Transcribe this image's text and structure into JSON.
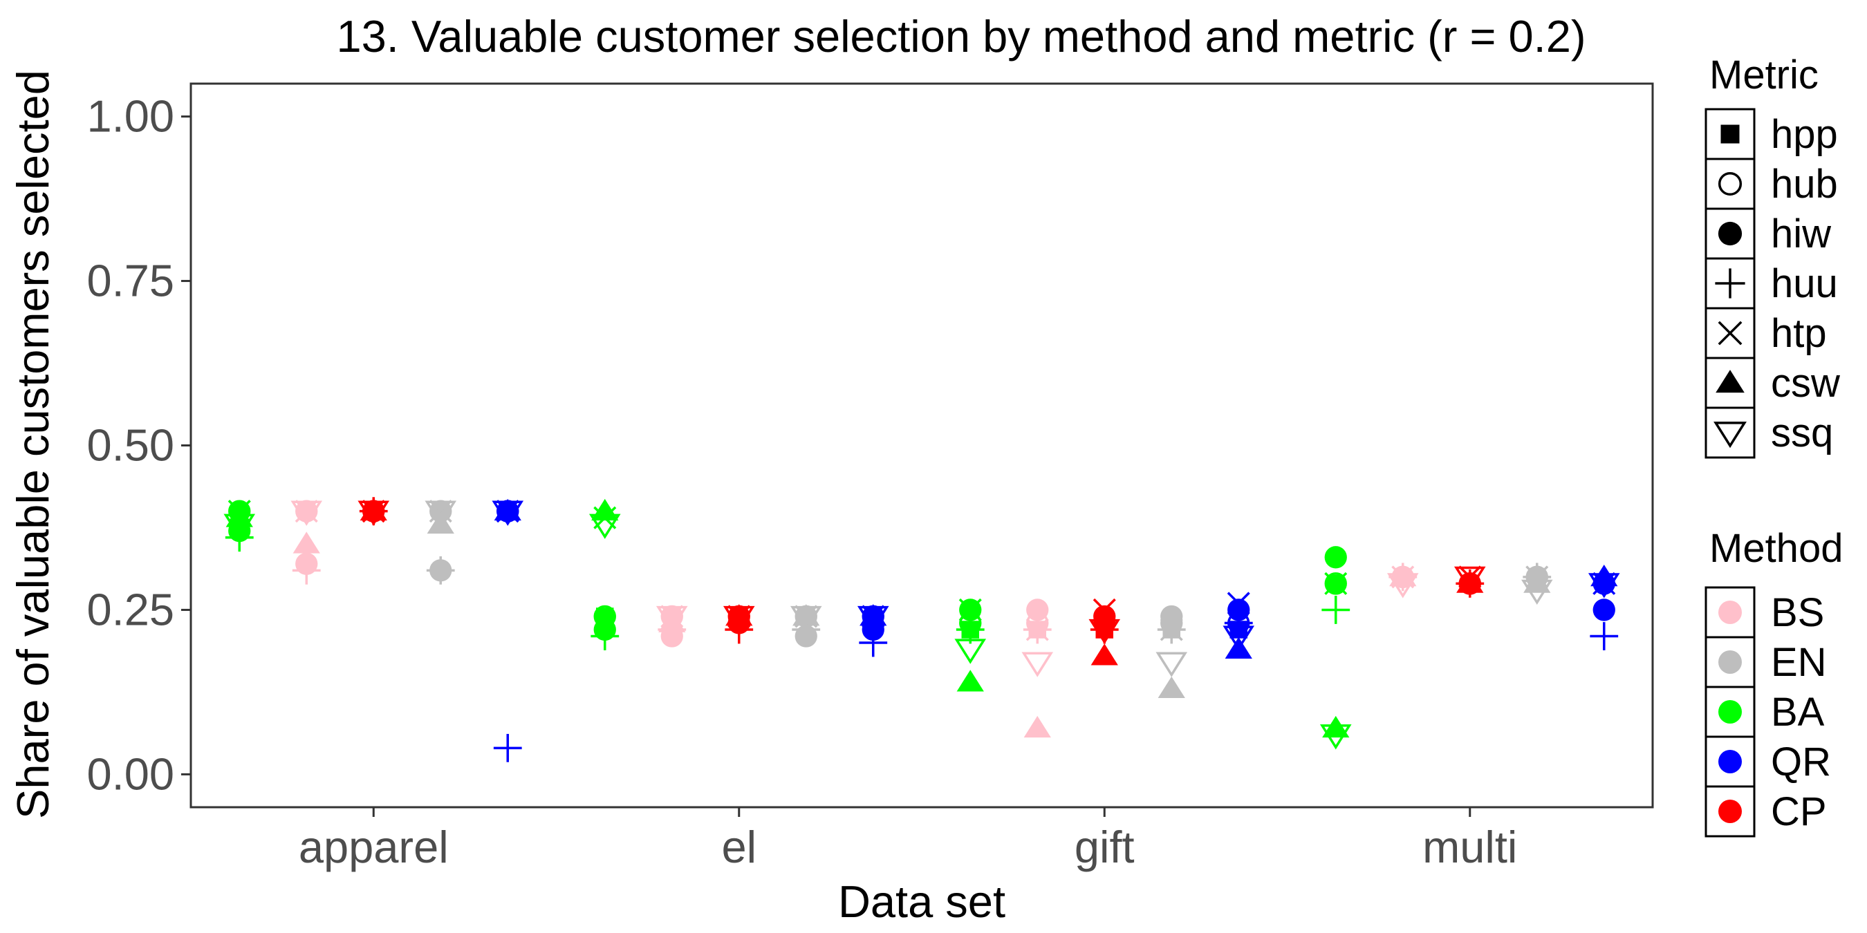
{
  "chart_data": {
    "type": "scatter",
    "title": "13. Valuable customer selection by method and metric (r = 0.2)",
    "xlabel": "Data set",
    "ylabel": "Share of valuable customers selected",
    "categories": [
      "apparel",
      "el",
      "gift",
      "multi"
    ],
    "ylim": [
      -0.05,
      1.05
    ],
    "yticks": [
      0.0,
      0.25,
      0.5,
      0.75,
      1.0
    ],
    "ytick_labels": [
      "0.00",
      "0.25",
      "0.50",
      "0.75",
      "1.00"
    ],
    "grid": false,
    "legend_position": "right",
    "metric_legend": {
      "title": "Metric",
      "items": [
        {
          "label": "hpp",
          "shape": "square-filled"
        },
        {
          "label": "hub",
          "shape": "circle-open"
        },
        {
          "label": "hiw",
          "shape": "circle-filled"
        },
        {
          "label": "huu",
          "shape": "plus"
        },
        {
          "label": "htp",
          "shape": "cross"
        },
        {
          "label": "csw",
          "shape": "triangle-up-filled"
        },
        {
          "label": "ssq",
          "shape": "triangle-down-open"
        }
      ]
    },
    "method_legend": {
      "title": "Method",
      "items": [
        {
          "label": "BS",
          "color": "#FFC0CB"
        },
        {
          "label": "EN",
          "color": "#BEBEBE"
        },
        {
          "label": "BA",
          "color": "#00FF00"
        },
        {
          "label": "QR",
          "color": "#0000FF"
        },
        {
          "label": "CP",
          "color": "#FF0000"
        }
      ]
    },
    "methods_order_in_group": [
      "BA",
      "BS",
      "CP",
      "EN",
      "QR"
    ],
    "series": [
      {
        "method": "BA",
        "metric": "hpp",
        "values": [
          0.4,
          0.24,
          0.22,
          0.29
        ]
      },
      {
        "method": "BA",
        "metric": "hub",
        "values": [
          0.4,
          0.24,
          0.23,
          0.29
        ]
      },
      {
        "method": "BA",
        "metric": "hiw",
        "values": [
          0.37,
          0.22,
          0.25,
          0.33
        ]
      },
      {
        "method": "BA",
        "metric": "huu",
        "values": [
          0.36,
          0.21,
          0.22,
          0.25
        ]
      },
      {
        "method": "BA",
        "metric": "htp",
        "values": [
          0.4,
          0.39,
          0.25,
          0.29
        ]
      },
      {
        "method": "BA",
        "metric": "csw",
        "values": [
          0.39,
          0.4,
          0.14,
          0.07
        ]
      },
      {
        "method": "BA",
        "metric": "ssq",
        "values": [
          0.38,
          0.38,
          0.19,
          0.06
        ]
      },
      {
        "method": "BS",
        "metric": "hpp",
        "values": [
          0.4,
          0.24,
          0.22,
          0.3
        ]
      },
      {
        "method": "BS",
        "metric": "hub",
        "values": [
          0.4,
          0.24,
          0.23,
          0.3
        ]
      },
      {
        "method": "BS",
        "metric": "hiw",
        "values": [
          0.32,
          0.21,
          0.25,
          0.3
        ]
      },
      {
        "method": "BS",
        "metric": "huu",
        "values": [
          0.31,
          0.22,
          0.22,
          0.3
        ]
      },
      {
        "method": "BS",
        "metric": "htp",
        "values": [
          0.4,
          0.24,
          0.22,
          0.3
        ]
      },
      {
        "method": "BS",
        "metric": "csw",
        "values": [
          0.35,
          0.23,
          0.07,
          0.3
        ]
      },
      {
        "method": "BS",
        "metric": "ssq",
        "values": [
          0.4,
          0.24,
          0.17,
          0.29
        ]
      },
      {
        "method": "CP",
        "metric": "hpp",
        "values": [
          0.4,
          0.24,
          0.22,
          0.29
        ]
      },
      {
        "method": "CP",
        "metric": "hub",
        "values": [
          0.4,
          0.24,
          0.23,
          0.29
        ]
      },
      {
        "method": "CP",
        "metric": "hiw",
        "values": [
          0.4,
          0.23,
          0.24,
          0.29
        ]
      },
      {
        "method": "CP",
        "metric": "huu",
        "values": [
          0.4,
          0.22,
          0.22,
          0.29
        ]
      },
      {
        "method": "CP",
        "metric": "htp",
        "values": [
          0.4,
          0.24,
          0.25,
          0.3
        ]
      },
      {
        "method": "CP",
        "metric": "csw",
        "values": [
          0.4,
          0.24,
          0.18,
          0.29
        ]
      },
      {
        "method": "CP",
        "metric": "ssq",
        "values": [
          0.4,
          0.24,
          0.22,
          0.3
        ]
      },
      {
        "method": "EN",
        "metric": "hpp",
        "values": [
          0.4,
          0.24,
          0.22,
          0.3
        ]
      },
      {
        "method": "EN",
        "metric": "hub",
        "values": [
          0.4,
          0.24,
          0.23,
          0.3
        ]
      },
      {
        "method": "EN",
        "metric": "hiw",
        "values": [
          0.31,
          0.21,
          0.24,
          0.3
        ]
      },
      {
        "method": "EN",
        "metric": "huu",
        "values": [
          0.31,
          0.22,
          0.22,
          0.3
        ]
      },
      {
        "method": "EN",
        "metric": "htp",
        "values": [
          0.4,
          0.24,
          0.22,
          0.3
        ]
      },
      {
        "method": "EN",
        "metric": "csw",
        "values": [
          0.38,
          0.24,
          0.13,
          0.29
        ]
      },
      {
        "method": "EN",
        "metric": "ssq",
        "values": [
          0.4,
          0.24,
          0.17,
          0.28
        ]
      },
      {
        "method": "QR",
        "metric": "hpp",
        "values": [
          0.4,
          0.24,
          0.22,
          0.29
        ]
      },
      {
        "method": "QR",
        "metric": "hub",
        "values": [
          0.4,
          0.24,
          0.23,
          0.29
        ]
      },
      {
        "method": "QR",
        "metric": "hiw",
        "values": [
          0.4,
          0.22,
          0.25,
          0.25
        ]
      },
      {
        "method": "QR",
        "metric": "huu",
        "values": [
          0.04,
          0.2,
          0.23,
          0.21
        ]
      },
      {
        "method": "QR",
        "metric": "htp",
        "values": [
          0.4,
          0.24,
          0.26,
          0.29
        ]
      },
      {
        "method": "QR",
        "metric": "csw",
        "values": [
          0.4,
          0.24,
          0.19,
          0.3
        ]
      },
      {
        "method": "QR",
        "metric": "ssq",
        "values": [
          0.4,
          0.24,
          0.21,
          0.29
        ]
      }
    ]
  }
}
